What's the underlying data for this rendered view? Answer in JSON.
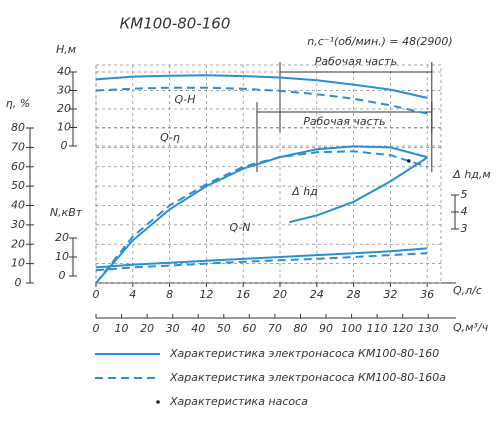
{
  "chart_data": {
    "type": "line",
    "title": "КМ100-80-160",
    "speed_note": "n,с⁻¹(об/мин.) = 48(2900)",
    "color": "#2a8fd4",
    "grid": true,
    "x_label": "Q,л/с",
    "xlim": [
      0,
      37.5
    ],
    "xticks": [
      0,
      4,
      8,
      12,
      16,
      20,
      24,
      28,
      32,
      36
    ],
    "x2_label": "Q,м³/ч",
    "x2lim": [
      0,
      135
    ],
    "x2ticks": [
      0,
      10,
      20,
      30,
      40,
      50,
      60,
      70,
      80,
      90,
      100,
      110,
      120,
      130
    ],
    "axes": {
      "H": {
        "label": "H,м",
        "ylim": [
          0,
          40
        ],
        "yticks": [
          0,
          10,
          20,
          30,
          40
        ]
      },
      "eta": {
        "label": "η, %",
        "ylim": [
          0,
          80
        ],
        "yticks": [
          0,
          10,
          20,
          30,
          40,
          50,
          60,
          70,
          80
        ]
      },
      "N": {
        "label": "N,кВт",
        "ylim": [
          0,
          20
        ],
        "yticks": [
          0,
          10,
          20
        ]
      },
      "dh": {
        "label": "Δ hд,м",
        "ylim": [
          3,
          5
        ],
        "yticks": [
          3,
          4,
          5
        ]
      }
    },
    "curves": [
      {
        "axis": "H",
        "label": "Q-H",
        "x": [
          0,
          4,
          8,
          12,
          16,
          20,
          24,
          28,
          32,
          36
        ],
        "solid": [
          36,
          37.5,
          38,
          38.2,
          37.8,
          37,
          35.5,
          33.2,
          30.5,
          26
        ],
        "dashed": [
          30,
          31,
          31.5,
          31.5,
          31,
          29.8,
          28,
          25.5,
          22,
          17.5
        ]
      },
      {
        "axis": "eta",
        "label": "Q-η",
        "x": [
          0,
          4,
          8,
          12,
          16,
          20,
          24,
          28,
          32,
          36
        ],
        "solid": [
          0,
          22,
          38,
          50,
          59,
          65,
          69,
          70.5,
          70,
          65
        ],
        "dashed": [
          0,
          24,
          40,
          51,
          60,
          65,
          67.5,
          68,
          66,
          60
        ]
      },
      {
        "axis": "dh",
        "label": "Δ hд",
        "x": [
          21,
          24,
          28,
          32,
          36
        ],
        "solid": [
          3.4,
          3.8,
          4.6,
          5.8,
          7.2
        ]
      },
      {
        "axis": "N",
        "label": "Q-N",
        "x": [
          0,
          4,
          8,
          12,
          16,
          20,
          24,
          28,
          32,
          36
        ],
        "solid": [
          4.5,
          6,
          7,
          8,
          9,
          10,
          11,
          12,
          13,
          14.5
        ],
        "dashed": [
          3,
          4.5,
          5.5,
          6.5,
          7.5,
          8.3,
          9,
          10,
          11,
          12
        ]
      }
    ],
    "pump_points": {
      "axis": "eta",
      "x": [
        34
      ],
      "values": [
        63
      ]
    },
    "work_zones": [
      {
        "label": "Рабочая часть",
        "range": [
          20,
          36.5
        ]
      },
      {
        "label": "Рабочая часть",
        "range": [
          17.5,
          36.5
        ]
      }
    ],
    "legend": [
      {
        "name": "Характеристика электронасоса КМ100-80-160",
        "style": "solid"
      },
      {
        "name": "Характеристика электронасоса КМ100-80-160а",
        "style": "dashed"
      },
      {
        "name": "Характеристика насоса",
        "style": "dot"
      }
    ]
  }
}
